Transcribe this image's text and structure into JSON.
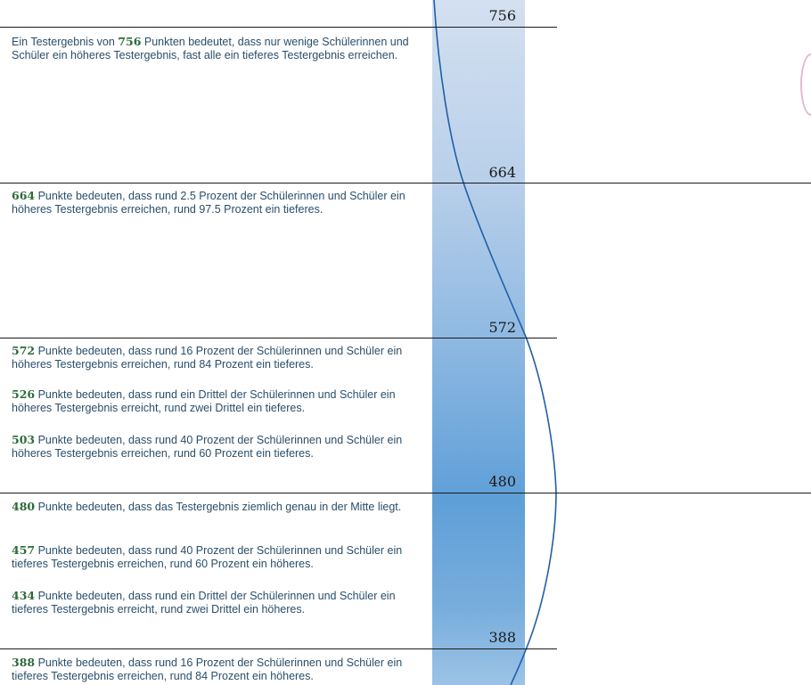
{
  "scale": {
    "marks": [
      {
        "score": "756"
      },
      {
        "score": "664"
      },
      {
        "score": "572"
      },
      {
        "score": "480"
      },
      {
        "score": "388"
      }
    ]
  },
  "descriptions": [
    {
      "score": "756",
      "pre": "Ein Testergebnis von ",
      "text": " Punkten bedeutet, dass nur wenige Schülerinnen und Schüler ein höheres Testergebnis, fast alle ein tieferes Testergebnis erreichen."
    },
    {
      "score": "664",
      "pre": "",
      "text": " Punkte bedeuten, dass rund 2.5 Prozent der Schülerinnen und Schüler ein höheres Testergebnis erreichen, rund 97.5 Prozent ein tieferes."
    },
    {
      "score": "572",
      "pre": "",
      "text": " Punkte bedeuten, dass rund 16 Prozent der Schülerinnen und Schüler ein höheres Testergebnis erreichen, rund 84 Prozent ein tieferes."
    },
    {
      "score": "526",
      "pre": "",
      "text": " Punkte bedeuten, dass rund ein Drittel der Schülerinnen und Schüler ein höheres Testergebnis erreicht, rund zwei Drittel ein tieferes."
    },
    {
      "score": "503",
      "pre": "",
      "text": " Punkte bedeuten, dass rund 40 Prozent der Schülerinnen und Schüler ein höheres Testergebnis erreichen, rund 60 Prozent ein tieferes."
    },
    {
      "score": "480",
      "pre": "",
      "text": " Punkte bedeuten, dass das Testergebnis ziemlich genau in der Mitte liegt."
    },
    {
      "score": "457",
      "pre": "",
      "text": " Punkte bedeuten, dass rund 40 Prozent der Schülerinnen und Schüler ein tieferes Testergebnis erreichen, rund 60 Prozent ein höheres."
    },
    {
      "score": "434",
      "pre": "",
      "text": " Punkte bedeuten, dass rund ein Drittel der Schülerinnen und Schüler ein tieferes Testergebnis erreicht, rund zwei Drittel ein höheres."
    },
    {
      "score": "388",
      "pre": "",
      "text": " Punkte bedeuten, dass rund 16 Prozent der Schülerinnen und Schüler ein tieferes Testergebnis erreichen, rund 84 Prozent ein höheres."
    }
  ],
  "colors": {
    "score_bold": "#2d6a3a",
    "body_text": "#2a4e6a",
    "curve": "#1f5fa8",
    "band_top": "#d3e0f0",
    "band_mid": "#5f9fd8"
  }
}
